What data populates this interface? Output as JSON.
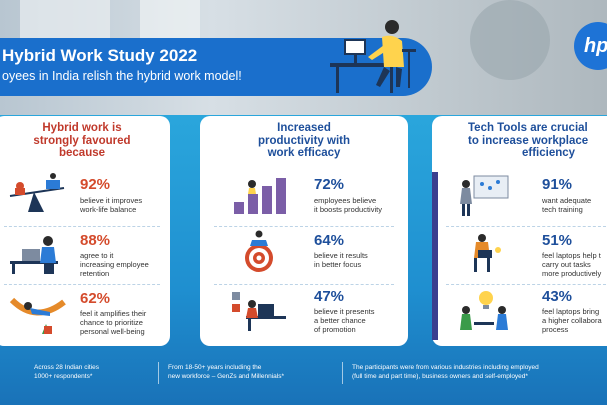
{
  "header": {
    "title": "Hybrid Work Study 2022",
    "subtitle": "oyees in India relish the hybrid work model!"
  },
  "logo": {
    "text": "hp",
    "icon": "hp-logo-icon",
    "color": "#1e73d6"
  },
  "cards": [
    {
      "heading_lines": [
        "Hybrid work is",
        "strongly favoured",
        "because"
      ],
      "accent": "#d44b2c",
      "stats": [
        {
          "value": "92%",
          "desc_lines": [
            "believe it improves",
            "work-life balance"
          ],
          "icon": "work-life-balance-scale-icon"
        },
        {
          "value": "88%",
          "desc_lines": [
            "agree to it",
            "increasing employee",
            "retention"
          ],
          "icon": "person-at-laptop-icon"
        },
        {
          "value": "62%",
          "desc_lines": [
            "feel it amplifies their",
            "chance to prioritize",
            "personal well-being"
          ],
          "icon": "hammock-relaxing-icon"
        }
      ]
    },
    {
      "heading_lines": [
        "Increased",
        "productivity with",
        "work efficacy"
      ],
      "accent": "#1e4f9b",
      "stats": [
        {
          "value": "72%",
          "desc_lines": [
            "employees believe",
            "it boosts productivity"
          ],
          "icon": "rising-bars-icon"
        },
        {
          "value": "64%",
          "desc_lines": [
            "believe it results",
            "in better focus"
          ],
          "icon": "target-meditation-icon"
        },
        {
          "value": "47%",
          "desc_lines": [
            "believe it presents",
            "a better chance",
            "of promotion"
          ],
          "icon": "career-desk-icon"
        }
      ]
    },
    {
      "heading_lines": [
        "Tech Tools are crucial",
        "to increase workplace",
        "efficiency"
      ],
      "accent": "#1e4f9b",
      "stats": [
        {
          "value": "91%",
          "desc_lines": [
            "want adequate",
            "tech training"
          ],
          "icon": "presentation-board-icon"
        },
        {
          "value": "51%",
          "desc_lines": [
            "feel laptops help t",
            "carry out tasks",
            "more productively"
          ],
          "icon": "laptop-on-chair-icon"
        },
        {
          "value": "43%",
          "desc_lines": [
            "feel laptops bring",
            "a higher collabora",
            "process"
          ],
          "icon": "collaboration-lightbulb-icon"
        }
      ]
    }
  ],
  "footer": [
    {
      "lines": [
        "Across 28 Indian cities",
        "1000+ respondents*"
      ]
    },
    {
      "lines": [
        "From 18-50+ years including the",
        "new workforce – GenZs and Millennials*"
      ]
    },
    {
      "lines": [
        "The participants were from various industries including employed",
        "(full time and part time), business owners and self-employed*"
      ]
    }
  ]
}
